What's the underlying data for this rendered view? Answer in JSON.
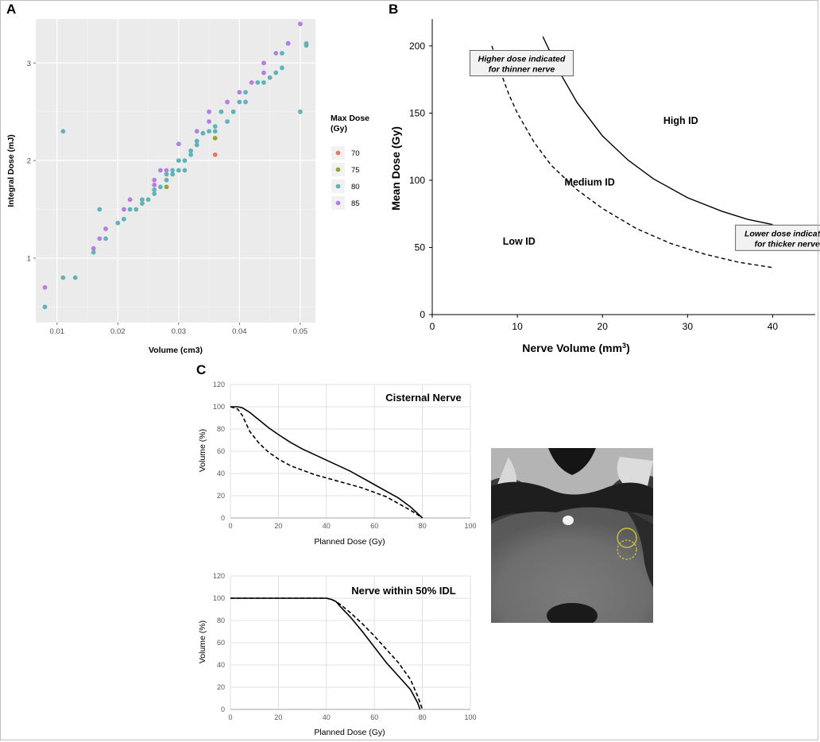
{
  "chart_data": [
    {
      "panel": "A",
      "type": "scatter",
      "xlabel": "Volume (cm3)",
      "ylabel": "Integral Dose (mJ)",
      "xlim": [
        0.0065,
        0.0525
      ],
      "ylim": [
        0.34,
        3.45
      ],
      "xticks": [
        0.01,
        0.02,
        0.03,
        0.04,
        0.05
      ],
      "yticks": [
        1,
        2,
        3
      ],
      "grid": true,
      "legend_title": "Max Dose (Gy)",
      "legend_placement": "right",
      "series": [
        {
          "name": "70",
          "color": "#e07b62",
          "points": [
            [
              0.036,
              2.06
            ]
          ]
        },
        {
          "name": "75",
          "color": "#8fa637",
          "points": [
            [
              0.028,
              1.73
            ],
            [
              0.036,
              2.23
            ]
          ]
        },
        {
          "name": "80",
          "color": "#5fb3b9",
          "points": [
            [
              0.008,
              0.5
            ],
            [
              0.011,
              0.8
            ],
            [
              0.011,
              2.3
            ],
            [
              0.013,
              0.8
            ],
            [
              0.016,
              1.06
            ],
            [
              0.017,
              1.5
            ],
            [
              0.018,
              1.2
            ],
            [
              0.02,
              1.36
            ],
            [
              0.021,
              1.4
            ],
            [
              0.022,
              1.5
            ],
            [
              0.023,
              1.5
            ],
            [
              0.024,
              1.56
            ],
            [
              0.024,
              1.6
            ],
            [
              0.025,
              1.6
            ],
            [
              0.026,
              1.66
            ],
            [
              0.026,
              1.7
            ],
            [
              0.027,
              1.73
            ],
            [
              0.028,
              1.8
            ],
            [
              0.028,
              1.86
            ],
            [
              0.029,
              1.86
            ],
            [
              0.029,
              1.9
            ],
            [
              0.03,
              1.9
            ],
            [
              0.03,
              2.0
            ],
            [
              0.031,
              1.9
            ],
            [
              0.031,
              2.0
            ],
            [
              0.032,
              2.06
            ],
            [
              0.032,
              2.1
            ],
            [
              0.033,
              2.16
            ],
            [
              0.033,
              2.2
            ],
            [
              0.034,
              2.28
            ],
            [
              0.035,
              2.3
            ],
            [
              0.036,
              2.3
            ],
            [
              0.036,
              2.35
            ],
            [
              0.037,
              2.5
            ],
            [
              0.038,
              2.4
            ],
            [
              0.039,
              2.5
            ],
            [
              0.04,
              2.6
            ],
            [
              0.041,
              2.6
            ],
            [
              0.041,
              2.7
            ],
            [
              0.043,
              2.8
            ],
            [
              0.044,
              2.8
            ],
            [
              0.045,
              2.85
            ],
            [
              0.046,
              2.9
            ],
            [
              0.047,
              2.95
            ],
            [
              0.047,
              3.1
            ],
            [
              0.048,
              3.2
            ],
            [
              0.05,
              2.5
            ],
            [
              0.051,
              3.18
            ],
            [
              0.051,
              3.2
            ]
          ]
        },
        {
          "name": "85",
          "color": "#b57ee5",
          "points": [
            [
              0.008,
              0.7
            ],
            [
              0.016,
              1.1
            ],
            [
              0.017,
              1.2
            ],
            [
              0.018,
              1.3
            ],
            [
              0.021,
              1.5
            ],
            [
              0.022,
              1.6
            ],
            [
              0.026,
              1.75
            ],
            [
              0.026,
              1.8
            ],
            [
              0.027,
              1.9
            ],
            [
              0.028,
              1.9
            ],
            [
              0.03,
              2.17
            ],
            [
              0.033,
              2.3
            ],
            [
              0.035,
              2.4
            ],
            [
              0.035,
              2.5
            ],
            [
              0.038,
              2.6
            ],
            [
              0.04,
              2.7
            ],
            [
              0.042,
              2.8
            ],
            [
              0.044,
              2.9
            ],
            [
              0.044,
              3.0
            ],
            [
              0.046,
              3.1
            ],
            [
              0.048,
              3.2
            ],
            [
              0.05,
              3.4
            ]
          ]
        }
      ]
    },
    {
      "panel": "B",
      "type": "line",
      "xlabel": "Nerve Volume (mm",
      "xlabel_sup": "3",
      "xlabel_end": ")",
      "ylabel": "Mean Dose (Gy)",
      "xlim": [
        0,
        45
      ],
      "ylim": [
        0,
        220
      ],
      "xticks": [
        0,
        10,
        20,
        30,
        40
      ],
      "yticks": [
        0,
        50,
        100,
        150,
        200
      ],
      "grid": false,
      "series": [
        {
          "style": "solid",
          "x": [
            13,
            15,
            17,
            20,
            23,
            26,
            30,
            34,
            37,
            40
          ],
          "y": [
            207,
            180,
            158,
            133,
            115,
            101,
            87,
            77,
            71,
            67
          ]
        },
        {
          "style": "dashed",
          "x": [
            7,
            8,
            9,
            10,
            12,
            14,
            17,
            20,
            24,
            28,
            32,
            36,
            40
          ],
          "y": [
            200,
            181,
            164,
            150,
            128,
            111,
            93,
            79,
            64,
            53,
            45,
            39,
            35
          ]
        }
      ],
      "regions": [
        {
          "label": "High ID",
          "x": 29.2,
          "y": 142
        },
        {
          "label": "Medium ID",
          "x": 18.5,
          "y": 96
        },
        {
          "label": "Low ID",
          "x": 10.2,
          "y": 52
        }
      ],
      "annotations": [
        {
          "lines": [
            "Higher dose indicated",
            "for thinner nerve"
          ],
          "x": 10.5,
          "y": 186
        },
        {
          "lines": [
            "Lower dose indicated",
            "for thicker nerve"
          ],
          "x": 41.7,
          "y": 56
        }
      ]
    },
    {
      "panel": "C",
      "type": "line",
      "title": "Cisternal Nerve",
      "xlabel": "Planned Dose (Gy)",
      "ylabel": "Volume (%)",
      "xlim": [
        0,
        100
      ],
      "ylim": [
        0,
        120
      ],
      "xticks": [
        0,
        20,
        40,
        60,
        80,
        100
      ],
      "yticks": [
        0,
        20,
        40,
        60,
        80,
        100,
        120
      ],
      "grid": true,
      "series": [
        {
          "style": "solid",
          "x": [
            0,
            3,
            5,
            8,
            12,
            16,
            20,
            25,
            30,
            35,
            40,
            45,
            50,
            55,
            60,
            65,
            70,
            75,
            78,
            80
          ],
          "y": [
            100,
            100,
            99,
            95,
            88,
            81,
            75,
            68,
            62,
            57,
            52,
            47,
            42,
            36,
            30,
            24,
            18,
            10,
            4,
            0
          ]
        },
        {
          "style": "dashed",
          "x": [
            0,
            3,
            5,
            8,
            12,
            16,
            20,
            25,
            30,
            35,
            40,
            45,
            50,
            55,
            60,
            65,
            70,
            75,
            78,
            80
          ],
          "y": [
            100,
            98,
            92,
            78,
            67,
            59,
            53,
            47,
            43,
            39,
            36,
            33,
            30,
            27,
            23,
            19,
            13,
            7,
            3,
            0
          ]
        }
      ]
    },
    {
      "panel": "C",
      "type": "line",
      "title": "Nerve within 50% IDL",
      "xlabel": "Planned Dose (Gy)",
      "ylabel": "Volume (%)",
      "xlim": [
        0,
        100
      ],
      "ylim": [
        0,
        120
      ],
      "xticks": [
        0,
        20,
        40,
        60,
        80,
        100
      ],
      "yticks": [
        0,
        20,
        40,
        60,
        80,
        100,
        120
      ],
      "grid": true,
      "series": [
        {
          "style": "solid",
          "x": [
            0,
            10,
            20,
            30,
            40,
            42,
            44,
            46,
            50,
            55,
            60,
            65,
            70,
            75,
            78,
            79
          ],
          "y": [
            100,
            100,
            100,
            100,
            100,
            99,
            97,
            92,
            83,
            70,
            56,
            42,
            30,
            18,
            6,
            0
          ]
        },
        {
          "style": "dashed",
          "x": [
            0,
            10,
            20,
            30,
            40,
            42,
            44,
            46,
            50,
            55,
            60,
            65,
            70,
            75,
            78,
            80
          ],
          "y": [
            100,
            100,
            100,
            100,
            100,
            99,
            97,
            94,
            87,
            77,
            66,
            54,
            42,
            27,
            12,
            0
          ]
        }
      ]
    }
  ],
  "labels": {
    "panel_a": "A",
    "panel_b": "B",
    "panel_c": "C"
  }
}
